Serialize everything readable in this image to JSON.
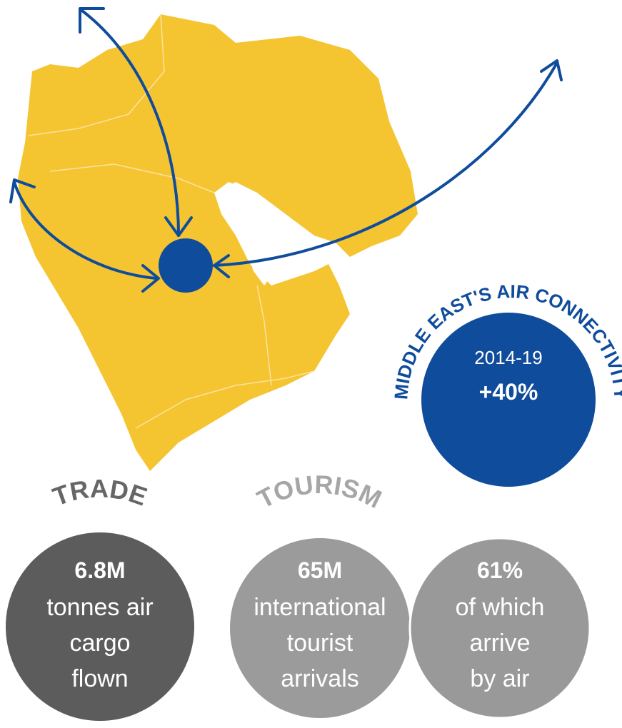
{
  "connectivity": {
    "label": "MIDDLE EAST'S AIR CONNECTIVITY",
    "period": "2014-19",
    "change": "+40%"
  },
  "trade": {
    "heading": "TRADE",
    "value": "6.8M",
    "lines": [
      "tonnes air",
      "cargo",
      "flown"
    ]
  },
  "tourism": {
    "heading": "TOURISM",
    "arrivals": {
      "value": "65M",
      "lines": [
        "international",
        "tourist",
        "arrivals"
      ]
    },
    "by_air": {
      "value": "61%",
      "lines": [
        "of which",
        "arrive",
        "by air"
      ]
    }
  }
}
